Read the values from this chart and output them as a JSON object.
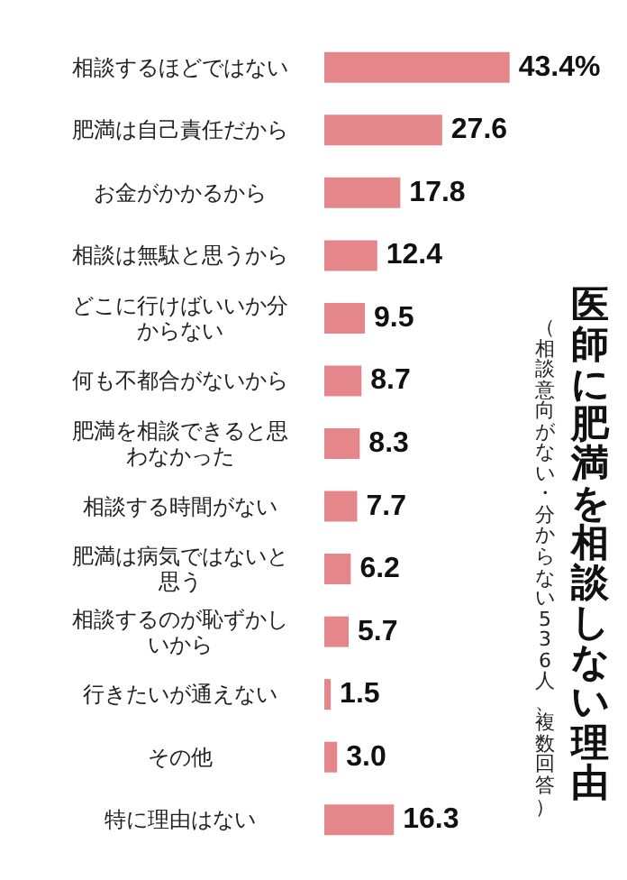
{
  "chart_data": {
    "type": "bar",
    "orientation": "horizontal",
    "title": "医師に肥満を相談しない理由",
    "subtitle": "（相談意向がない・分からない536人、複数回答）",
    "categories": [
      "相談するほどではない",
      "肥満は自己責任だから",
      "お金がかかるから",
      "相談は無駄と思うから",
      "どこに行けばいいか分からない",
      "何も不都合がないから",
      "肥満を相談できると思わなかった",
      "相談する時間がない",
      "肥満は病気ではないと思う",
      "相談するのが恥ずかしいから",
      "行きたいが通えない",
      "その他",
      "特に理由はない"
    ],
    "values": [
      43.4,
      27.6,
      17.8,
      12.4,
      9.5,
      8.7,
      8.3,
      7.7,
      6.2,
      5.7,
      1.5,
      3.0,
      16.3
    ],
    "value_labels": [
      "43.4%",
      "27.6",
      "17.8",
      "12.4",
      "9.5",
      "8.7",
      "8.3",
      "7.7",
      "6.2",
      "5.7",
      "1.5",
      "3.0",
      "16.3"
    ],
    "color": "#e5878a"
  }
}
